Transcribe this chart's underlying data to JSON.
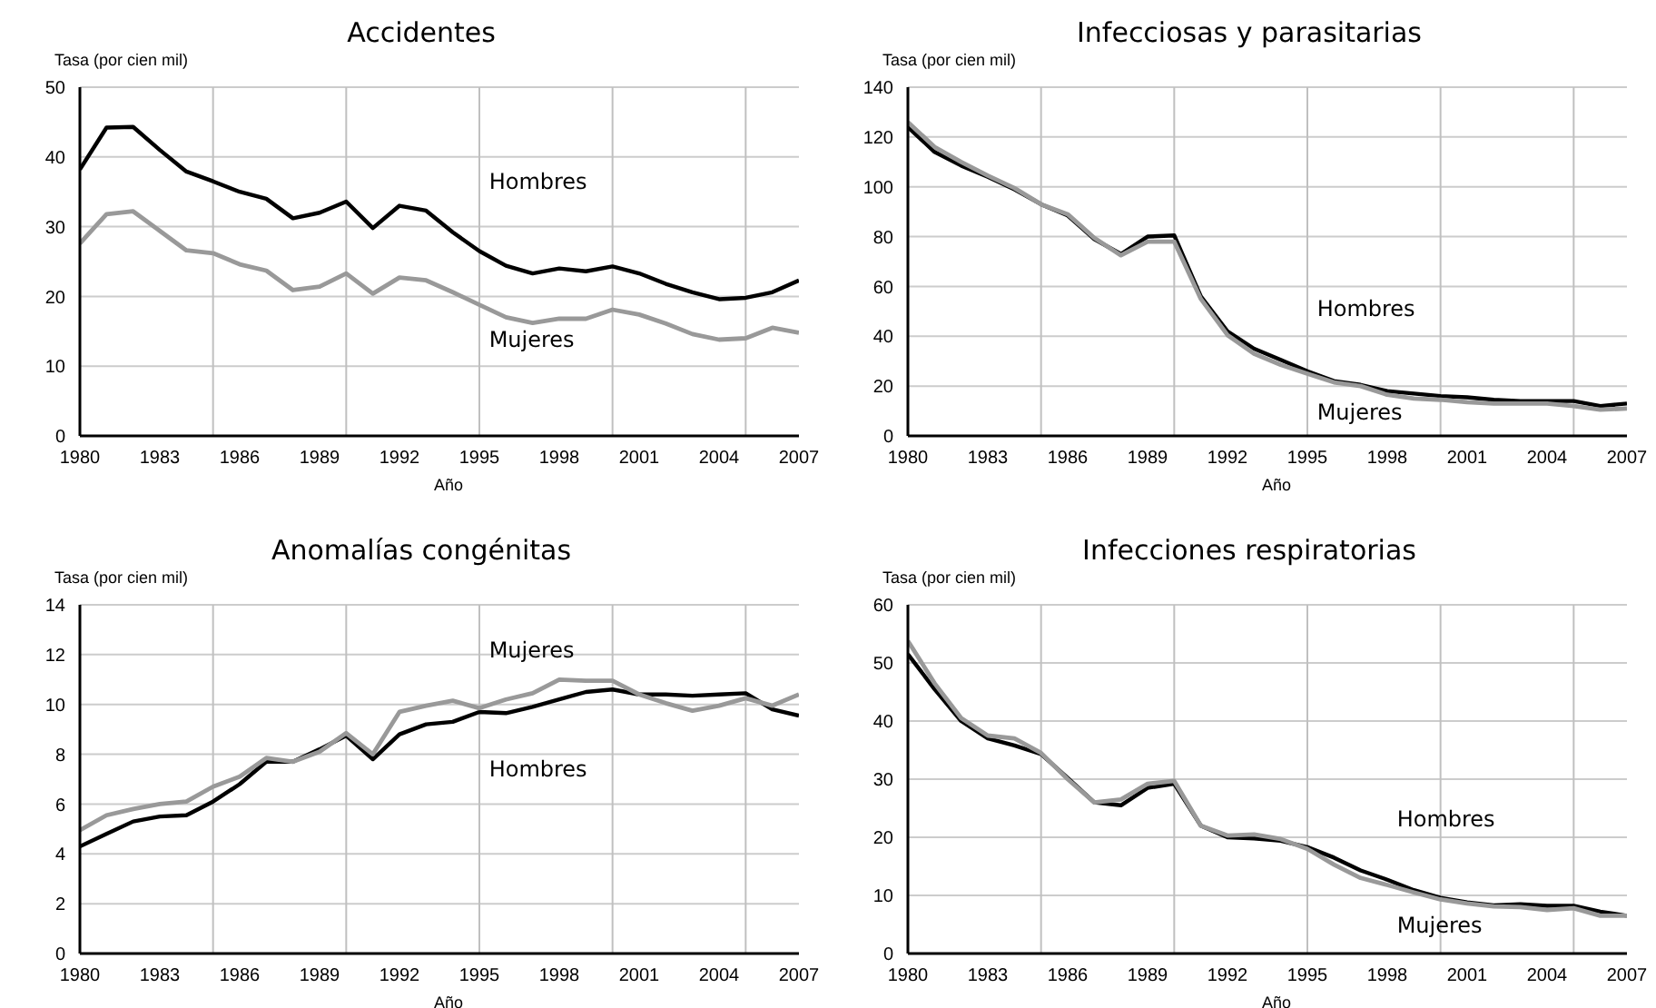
{
  "chart_data": [
    {
      "type": "line",
      "title": "Accidentes",
      "ylabel": "Tasa (por cien mil)",
      "xlabel": "Año",
      "x": [
        1980,
        1981,
        1982,
        1983,
        1984,
        1985,
        1986,
        1987,
        1988,
        1989,
        1990,
        1991,
        1992,
        1993,
        1994,
        1995,
        1996,
        1997,
        1998,
        1999,
        2000,
        2001,
        2002,
        2003,
        2004,
        2005,
        2006,
        2007
      ],
      "xlim": [
        1980,
        2007
      ],
      "xticks": [
        1980,
        1983,
        1986,
        1989,
        1992,
        1995,
        1998,
        2001,
        2004,
        2007
      ],
      "ylim": [
        0,
        50
      ],
      "yticks": [
        0,
        10,
        20,
        30,
        40,
        50
      ],
      "grid": "y",
      "legend": false,
      "marker": "none",
      "line_style": "solid",
      "ref_lines": [
        {
          "axis": "x",
          "value": 1985,
          "color": "#c0c0c0"
        },
        {
          "axis": "x",
          "value": 1990,
          "color": "#c0c0c0"
        },
        {
          "axis": "x",
          "value": 1995,
          "color": "#c0c0c0"
        },
        {
          "axis": "x",
          "value": 2000,
          "color": "#c0c0c0"
        },
        {
          "axis": "x",
          "value": 2005,
          "color": "#c0c0c0"
        }
      ],
      "series": [
        {
          "name": "Hombres",
          "color": "#000000",
          "values": [
            38.2,
            44.2,
            44.3,
            41,
            37.9,
            36.5,
            35,
            34,
            31.2,
            32,
            33.6,
            29.8,
            33,
            32.3,
            29.2,
            26.5,
            24.4,
            23.3,
            24,
            23.6,
            24.3,
            23.3,
            21.8,
            20.6,
            19.6,
            19.8,
            20.6,
            22.3
          ]
        },
        {
          "name": "Mujeres",
          "color": "#999999",
          "values": [
            27.6,
            31.8,
            32.2,
            29.4,
            26.6,
            26.2,
            24.6,
            23.7,
            20.9,
            21.4,
            23.3,
            20.4,
            22.7,
            22.3,
            20.6,
            18.8,
            17,
            16.2,
            16.8,
            16.8,
            18.1,
            17.4,
            16.1,
            14.6,
            13.8,
            14,
            15.5,
            14.8
          ]
        }
      ]
    },
    {
      "type": "line",
      "title": "Infecciosas y parasitarias",
      "ylabel": "Tasa (por cien mil)",
      "xlabel": "Año",
      "x": [
        1980,
        1981,
        1982,
        1983,
        1984,
        1985,
        1986,
        1987,
        1988,
        1989,
        1990,
        1991,
        1992,
        1993,
        1994,
        1995,
        1996,
        1997,
        1998,
        1999,
        2000,
        2001,
        2002,
        2003,
        2004,
        2005,
        2006,
        2007
      ],
      "xlim": [
        1980,
        2007
      ],
      "xticks": [
        1980,
        1983,
        1986,
        1989,
        1992,
        1995,
        1998,
        2001,
        2004,
        2007
      ],
      "ylim": [
        0,
        140
      ],
      "yticks": [
        0,
        20,
        40,
        60,
        80,
        100,
        120,
        140
      ],
      "grid": "y",
      "legend": false,
      "marker": "none",
      "line_style": "solid",
      "ref_lines": [
        {
          "axis": "x",
          "value": 1985,
          "color": "#c0c0c0"
        },
        {
          "axis": "x",
          "value": 1990,
          "color": "#c0c0c0"
        },
        {
          "axis": "x",
          "value": 1995,
          "color": "#c0c0c0"
        },
        {
          "axis": "x",
          "value": 2000,
          "color": "#c0c0c0"
        },
        {
          "axis": "x",
          "value": 2005,
          "color": "#c0c0c0"
        }
      ],
      "series": [
        {
          "name": "Hombres",
          "color": "#000000",
          "values": [
            124,
            114,
            108.5,
            104,
            99,
            93,
            88.5,
            79,
            73,
            80,
            80.5,
            56,
            42,
            35,
            30.5,
            26,
            22,
            20.5,
            18,
            17,
            16,
            15.5,
            14.5,
            14,
            14,
            14,
            12,
            13
          ]
        },
        {
          "name": "Mujeres",
          "color": "#999999",
          "values": [
            126,
            116,
            110,
            104.5,
            99.5,
            93,
            89,
            79.5,
            72.5,
            78,
            78,
            55,
            40.5,
            33,
            28.5,
            25,
            21.5,
            20,
            16.5,
            15,
            14.5,
            13.5,
            13,
            13,
            13,
            12,
            10.5,
            11
          ]
        }
      ]
    },
    {
      "type": "line",
      "title": "Anomalías congénitas",
      "ylabel": "Tasa (por cien mil)",
      "xlabel": "Año",
      "x": [
        1980,
        1981,
        1982,
        1983,
        1984,
        1985,
        1986,
        1987,
        1988,
        1989,
        1990,
        1991,
        1992,
        1993,
        1994,
        1995,
        1996,
        1997,
        1998,
        1999,
        2000,
        2001,
        2002,
        2003,
        2004,
        2005,
        2006,
        2007
      ],
      "xlim": [
        1980,
        2007
      ],
      "xticks": [
        1980,
        1983,
        1986,
        1989,
        1992,
        1995,
        1998,
        2001,
        2004,
        2007
      ],
      "ylim": [
        0,
        14
      ],
      "yticks": [
        0,
        2,
        4,
        6,
        8,
        10,
        12,
        14
      ],
      "grid": "y",
      "legend": false,
      "marker": "none",
      "line_style": "solid",
      "ref_lines": [
        {
          "axis": "x",
          "value": 1985,
          "color": "#c0c0c0"
        },
        {
          "axis": "x",
          "value": 1990,
          "color": "#c0c0c0"
        },
        {
          "axis": "x",
          "value": 1995,
          "color": "#c0c0c0"
        },
        {
          "axis": "x",
          "value": 2000,
          "color": "#c0c0c0"
        },
        {
          "axis": "x",
          "value": 2005,
          "color": "#c0c0c0"
        }
      ],
      "series": [
        {
          "name": "Hombres",
          "color": "#000000",
          "values": [
            4.3,
            4.8,
            5.3,
            5.5,
            5.55,
            6.1,
            6.8,
            7.7,
            7.7,
            8.2,
            8.75,
            7.8,
            8.8,
            9.2,
            9.3,
            9.7,
            9.65,
            9.9,
            10.2,
            10.5,
            10.6,
            10.4,
            10.4,
            10.35,
            10.4,
            10.45,
            9.8,
            9.55
          ]
        },
        {
          "name": "Mujeres",
          "color": "#999999",
          "values": [
            4.95,
            5.55,
            5.8,
            6,
            6.1,
            6.7,
            7.1,
            7.85,
            7.7,
            8.1,
            8.85,
            8,
            9.7,
            9.95,
            10.15,
            9.85,
            10.2,
            10.45,
            11,
            10.95,
            10.95,
            10.4,
            10.05,
            9.75,
            9.95,
            10.25,
            9.95,
            10.4
          ]
        }
      ]
    },
    {
      "type": "line",
      "title": "Infecciones respiratorias",
      "ylabel": "Tasa (por cien mil)",
      "xlabel": "Año",
      "x": [
        1980,
        1981,
        1982,
        1983,
        1984,
        1985,
        1986,
        1987,
        1988,
        1989,
        1990,
        1991,
        1992,
        1993,
        1994,
        1995,
        1996,
        1997,
        1998,
        1999,
        2000,
        2001,
        2002,
        2003,
        2004,
        2005,
        2006,
        2007
      ],
      "xlim": [
        1980,
        2007
      ],
      "xticks": [
        1980,
        1983,
        1986,
        1989,
        1992,
        1995,
        1998,
        2001,
        2004,
        2007
      ],
      "ylim": [
        0,
        60
      ],
      "yticks": [
        0,
        10,
        20,
        30,
        40,
        50,
        60
      ],
      "grid": "y",
      "legend": false,
      "marker": "none",
      "line_style": "solid",
      "ref_lines": [
        {
          "axis": "x",
          "value": 1985,
          "color": "#c0c0c0"
        },
        {
          "axis": "x",
          "value": 1990,
          "color": "#c0c0c0"
        },
        {
          "axis": "x",
          "value": 1995,
          "color": "#c0c0c0"
        },
        {
          "axis": "x",
          "value": 2000,
          "color": "#c0c0c0"
        },
        {
          "axis": "x",
          "value": 2005,
          "color": "#c0c0c0"
        }
      ],
      "series": [
        {
          "name": "Hombres",
          "color": "#000000",
          "values": [
            51.5,
            45.5,
            40,
            37,
            35.8,
            34.3,
            30.2,
            26,
            25.5,
            28.5,
            29.2,
            22,
            20,
            19.8,
            19.4,
            18.3,
            16.5,
            14.3,
            12.7,
            10.9,
            9.6,
            8.8,
            8.3,
            8.5,
            8.2,
            8.2,
            7.2,
            6.5
          ]
        },
        {
          "name": "Mujeres",
          "color": "#999999",
          "values": [
            53.8,
            46.5,
            40.5,
            37.5,
            37,
            34.5,
            30,
            26,
            26.5,
            29.2,
            29.7,
            22,
            20.3,
            20.5,
            19.7,
            18,
            15.3,
            13,
            11.8,
            10.5,
            9.3,
            8.6,
            8.1,
            8,
            7.5,
            7.8,
            6.5,
            6.5
          ]
        }
      ]
    }
  ]
}
